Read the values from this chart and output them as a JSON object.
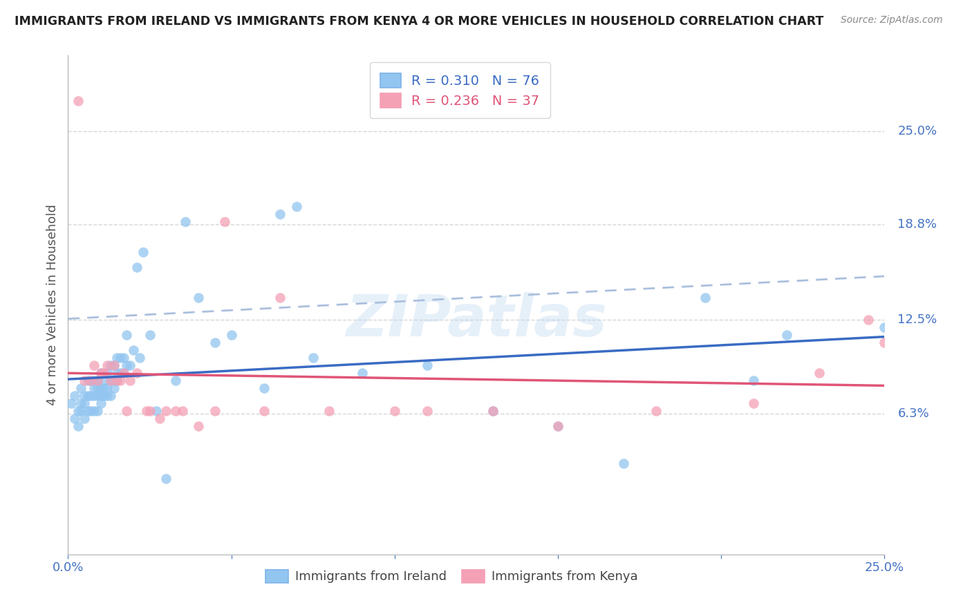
{
  "title": "IMMIGRANTS FROM IRELAND VS IMMIGRANTS FROM KENYA 4 OR MORE VEHICLES IN HOUSEHOLD CORRELATION CHART",
  "source": "Source: ZipAtlas.com",
  "ylabel": "4 or more Vehicles in Household",
  "xlim": [
    0.0,
    0.25
  ],
  "ylim": [
    -0.03,
    0.3
  ],
  "xtick_vals": [
    0.0,
    0.05,
    0.1,
    0.15,
    0.2,
    0.25
  ],
  "xtick_labels": [
    "0.0%",
    "",
    "",
    "",
    "",
    "25.0%"
  ],
  "ytick_vals": [
    0.063,
    0.125,
    0.188,
    0.25
  ],
  "ytick_labels": [
    "6.3%",
    "12.5%",
    "18.8%",
    "25.0%"
  ],
  "ireland_R": 0.31,
  "ireland_N": 76,
  "kenya_R": 0.236,
  "kenya_N": 37,
  "ireland_color": "#92C5F0",
  "kenya_color": "#F4A0B5",
  "ireland_line_color": "#3A6BC4",
  "kenya_line_color": "#E05577",
  "dashed_line_color": "#AABFDD",
  "watermark": "ZIPatlas",
  "ireland_x": [
    0.001,
    0.002,
    0.002,
    0.003,
    0.003,
    0.004,
    0.004,
    0.004,
    0.005,
    0.005,
    0.005,
    0.006,
    0.006,
    0.006,
    0.007,
    0.007,
    0.007,
    0.008,
    0.008,
    0.008,
    0.008,
    0.009,
    0.009,
    0.009,
    0.009,
    0.01,
    0.01,
    0.01,
    0.01,
    0.011,
    0.011,
    0.011,
    0.012,
    0.012,
    0.012,
    0.013,
    0.013,
    0.013,
    0.014,
    0.014,
    0.014,
    0.015,
    0.015,
    0.015,
    0.016,
    0.016,
    0.017,
    0.017,
    0.018,
    0.018,
    0.019,
    0.02,
    0.021,
    0.022,
    0.023,
    0.025,
    0.027,
    0.03,
    0.033,
    0.036,
    0.04,
    0.045,
    0.05,
    0.06,
    0.065,
    0.07,
    0.075,
    0.09,
    0.11,
    0.13,
    0.15,
    0.17,
    0.195,
    0.21,
    0.22,
    0.25
  ],
  "ireland_y": [
    0.07,
    0.075,
    0.06,
    0.065,
    0.055,
    0.065,
    0.07,
    0.08,
    0.07,
    0.06,
    0.075,
    0.065,
    0.075,
    0.085,
    0.065,
    0.075,
    0.085,
    0.065,
    0.075,
    0.08,
    0.085,
    0.065,
    0.075,
    0.08,
    0.085,
    0.07,
    0.075,
    0.08,
    0.09,
    0.075,
    0.08,
    0.085,
    0.075,
    0.08,
    0.09,
    0.075,
    0.085,
    0.095,
    0.08,
    0.085,
    0.095,
    0.085,
    0.09,
    0.1,
    0.09,
    0.1,
    0.09,
    0.1,
    0.095,
    0.115,
    0.095,
    0.105,
    0.16,
    0.1,
    0.17,
    0.115,
    0.065,
    0.02,
    0.085,
    0.19,
    0.14,
    0.11,
    0.115,
    0.08,
    0.195,
    0.2,
    0.1,
    0.09,
    0.095,
    0.065,
    0.055,
    0.03,
    0.14,
    0.085,
    0.115,
    0.12
  ],
  "kenya_x": [
    0.003,
    0.005,
    0.007,
    0.008,
    0.009,
    0.01,
    0.011,
    0.012,
    0.013,
    0.014,
    0.015,
    0.016,
    0.017,
    0.018,
    0.019,
    0.021,
    0.024,
    0.028,
    0.033,
    0.04,
    0.048,
    0.06,
    0.065,
    0.08,
    0.1,
    0.11,
    0.13,
    0.15,
    0.18,
    0.21,
    0.23,
    0.245,
    0.25,
    0.025,
    0.03,
    0.035,
    0.045
  ],
  "kenya_y": [
    0.27,
    0.085,
    0.085,
    0.095,
    0.085,
    0.09,
    0.09,
    0.095,
    0.085,
    0.095,
    0.085,
    0.085,
    0.09,
    0.065,
    0.085,
    0.09,
    0.065,
    0.06,
    0.065,
    0.055,
    0.19,
    0.065,
    0.14,
    0.065,
    0.065,
    0.065,
    0.065,
    0.055,
    0.065,
    0.07,
    0.09,
    0.125,
    0.11,
    0.065,
    0.065,
    0.065,
    0.065
  ],
  "grid_color": "#CCCCCC",
  "title_color": "#222222",
  "axis_label_color": "#555555",
  "right_label_color": "#4472C4",
  "tick_label_color": "#4472C4",
  "background_color": "#FFFFFF"
}
